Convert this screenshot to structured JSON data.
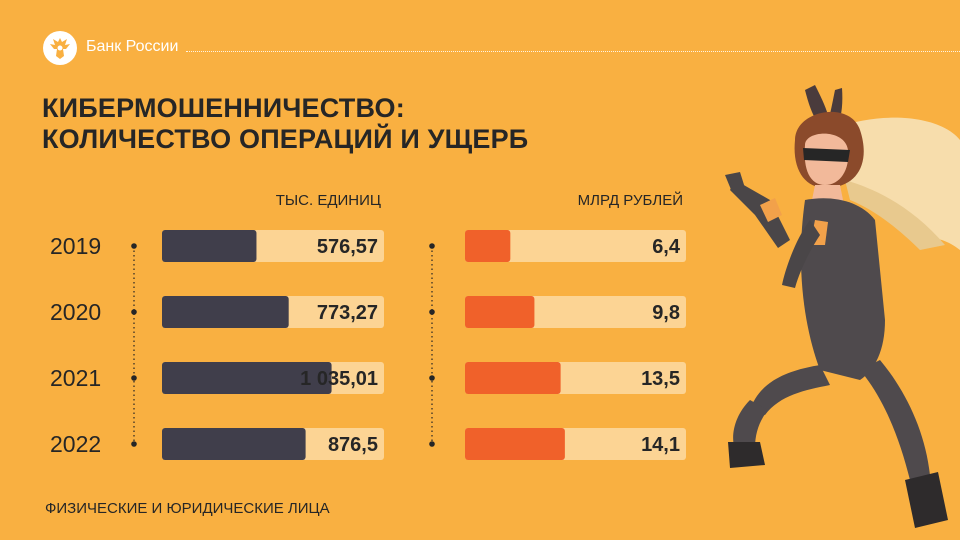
{
  "header": {
    "brand": "Банк России",
    "logo_icon": "double-headed-eagle-icon"
  },
  "title": {
    "line1": "КИБЕРМОШЕННИЧЕСТВО:",
    "line2": "КОЛИЧЕСТВО ОПЕРАЦИЙ И УЩЕРБ"
  },
  "footnote": "ФИЗИЧЕСКИЕ И ЮРИДИЧЕСКИЕ ЛИЦА",
  "illustration_icon": "masked-thief-woman-illustration",
  "colors": {
    "background": "#F9B041",
    "track": "#FCD494",
    "operations_bar": "#403E4B",
    "damage_bar": "#F0612A",
    "text": "#262626"
  },
  "chart_data": [
    {
      "type": "bar",
      "orientation": "horizontal",
      "unit_label": "ТЫС. ЕДИНИЦ",
      "categories": [
        "2019",
        "2020",
        "2021",
        "2022"
      ],
      "values": [
        576.57,
        773.27,
        1035.01,
        876.5
      ],
      "value_labels": [
        "576,57",
        "773,27",
        "1 035,01",
        "876,5"
      ]
    },
    {
      "type": "bar",
      "orientation": "horizontal",
      "unit_label": "МЛРД РУБЛЕЙ",
      "categories": [
        "2019",
        "2020",
        "2021",
        "2022"
      ],
      "values": [
        6.4,
        9.8,
        13.5,
        14.1
      ],
      "value_labels": [
        "6,4",
        "9,8",
        "13,5",
        "14,1"
      ]
    }
  ]
}
